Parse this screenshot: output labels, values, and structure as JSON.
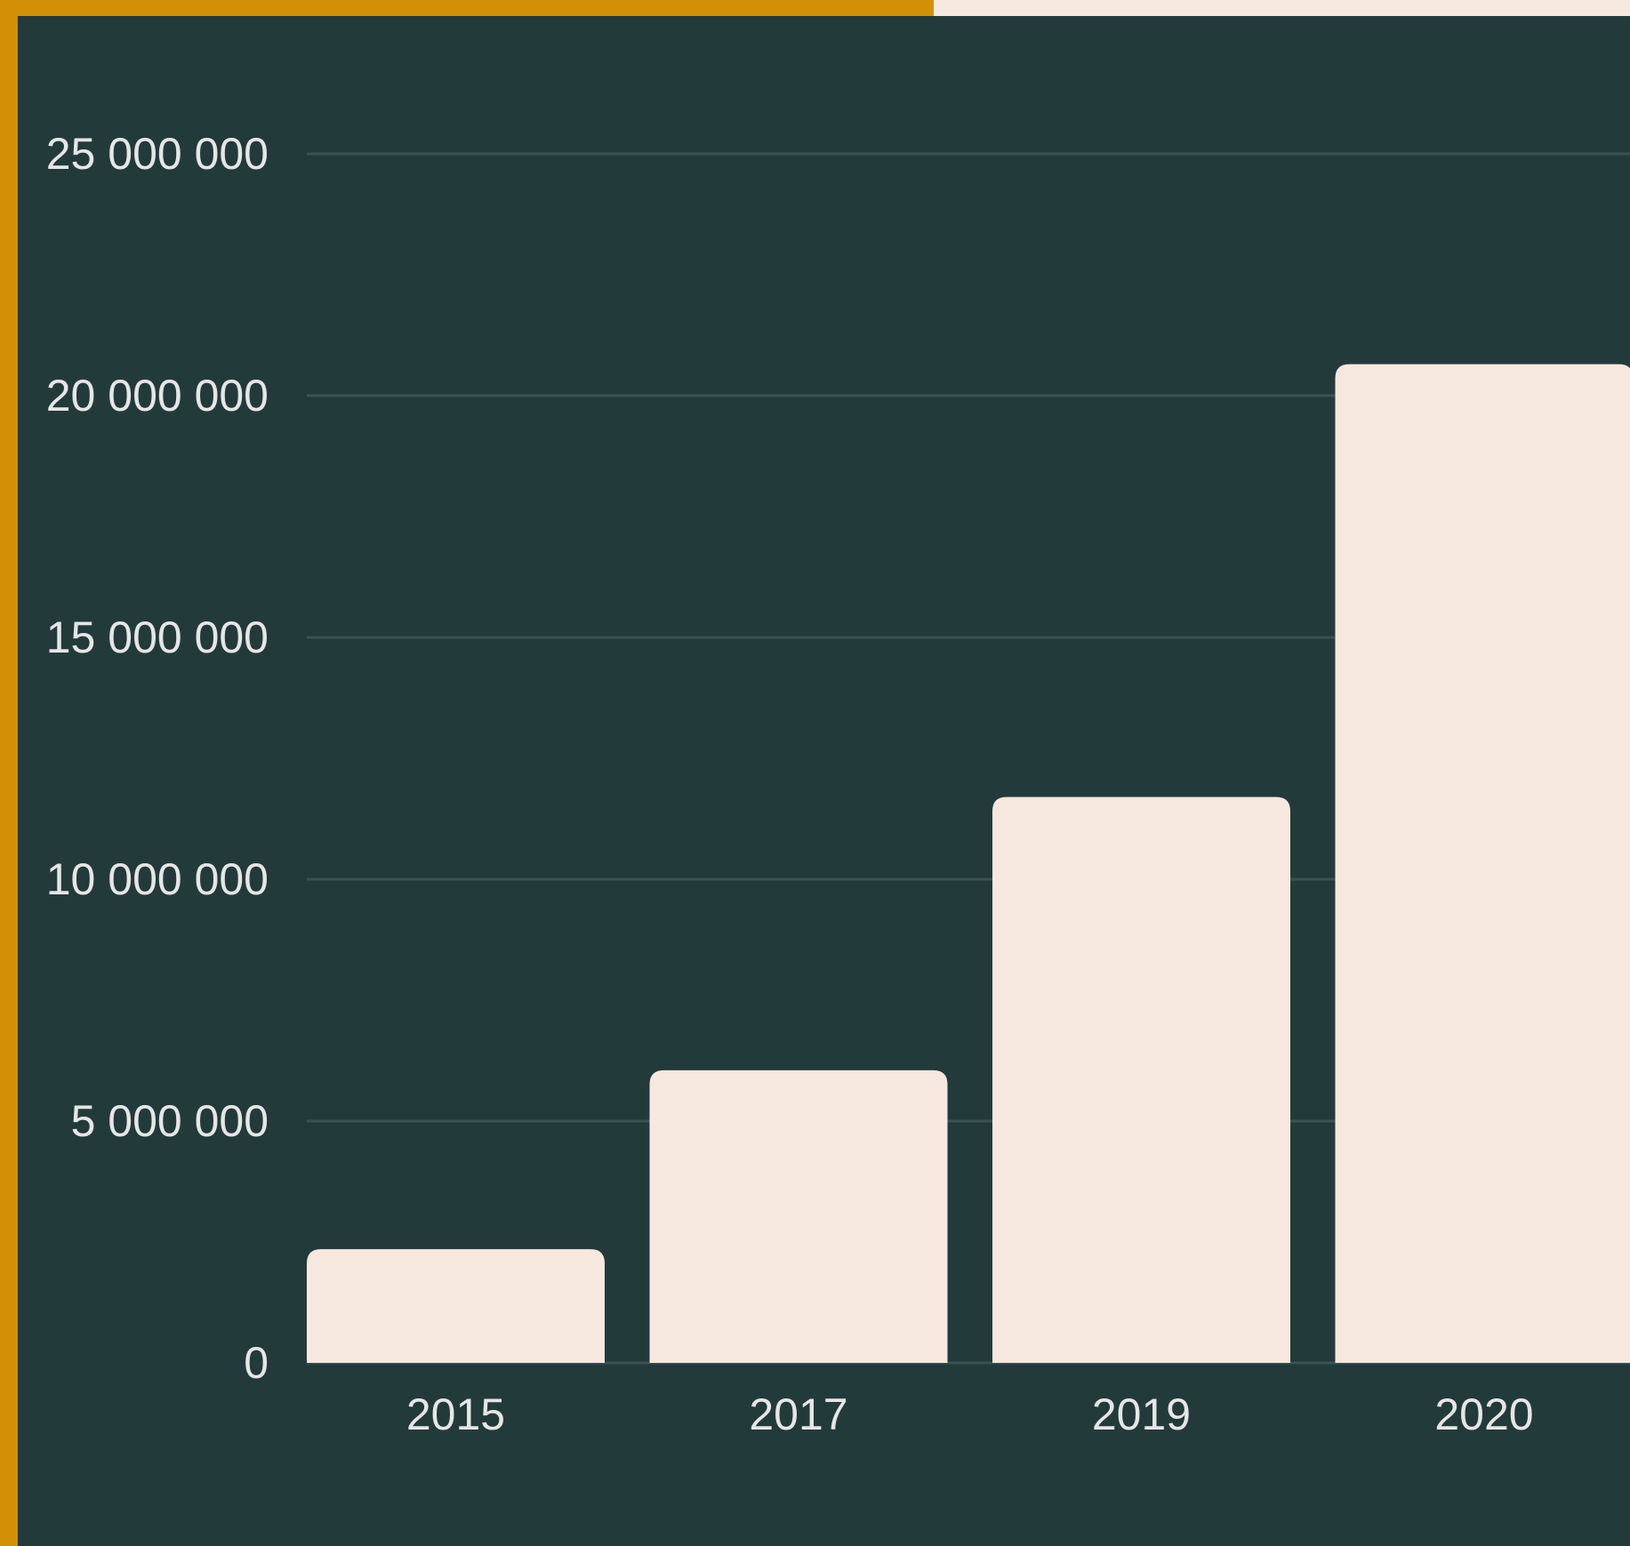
{
  "colors": {
    "background": "#233a3b",
    "accent": "#d38f05",
    "bar": "#f6e8df",
    "gridline": "#3b5152",
    "text": "#e6e6e6"
  },
  "chart_data": {
    "type": "bar",
    "categories": [
      "2015",
      "2017",
      "2019",
      "2020"
    ],
    "values": [
      2350000,
      6050000,
      11700000,
      20650000
    ],
    "y_ticks": [
      {
        "value": 0,
        "label": "0"
      },
      {
        "value": 5000000,
        "label": "5 000 000"
      },
      {
        "value": 10000000,
        "label": "10 000 000"
      },
      {
        "value": 15000000,
        "label": "15 000 000"
      },
      {
        "value": 20000000,
        "label": "20 000 000"
      },
      {
        "value": 25000000,
        "label": "25 000 000"
      }
    ],
    "ylim": [
      0,
      25000000
    ],
    "grid": true,
    "title": "",
    "xlabel": "",
    "ylabel": ""
  }
}
